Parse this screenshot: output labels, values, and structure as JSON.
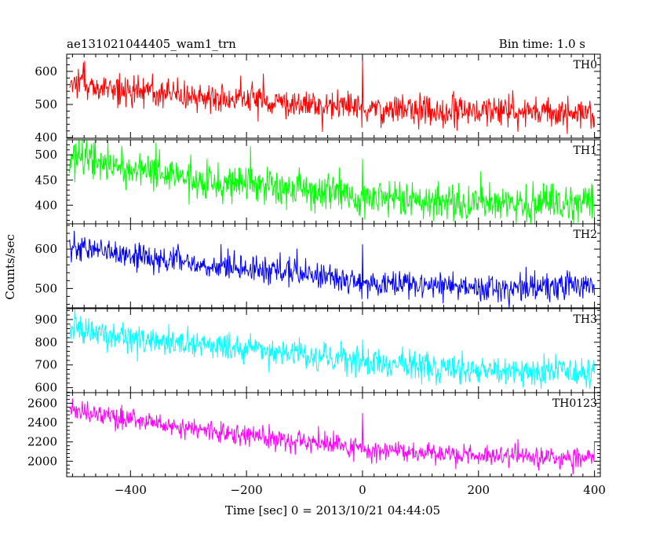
{
  "chart_data": {
    "type": "line",
    "title_left": "ae131021044405_wam1_trn",
    "title_right": "Bin time: 1.0 s",
    "xlabel": "Time [sec] 0 = 2013/10/21 04:44:05",
    "ylabel": "Counts/sec",
    "xlim": [
      -510,
      410
    ],
    "x_ticks": [
      -400,
      -200,
      0,
      200,
      400
    ],
    "x_start": -505,
    "x_end": 400,
    "bin_time": 1.0,
    "grid": false,
    "panels": [
      {
        "label": "TH0",
        "color": "#ff0000",
        "ylim": [
          398,
          652
        ],
        "y_ticks": [
          400,
          500,
          600
        ],
        "baseline": [
          [
            -505,
            565
          ],
          [
            -300,
            525
          ],
          [
            -100,
            505
          ],
          [
            0,
            488
          ],
          [
            200,
            478
          ],
          [
            400,
            472
          ]
        ],
        "noise_std": 24,
        "spike": {
          "x": 0,
          "value": 635
        }
      },
      {
        "label": "TH1",
        "color": "#00ff00",
        "ylim": [
          363,
          530
        ],
        "y_ticks": [
          400,
          450,
          500
        ],
        "baseline": [
          [
            -505,
            495
          ],
          [
            -300,
            455
          ],
          [
            -100,
            430
          ],
          [
            0,
            418
          ],
          [
            200,
            403
          ],
          [
            400,
            400
          ]
        ],
        "noise_std": 20,
        "spike": {
          "x": 0,
          "value": 492
        }
      },
      {
        "label": "TH2",
        "color": "#0000ff",
        "ylim": [
          451,
          664
        ],
        "y_ticks": [
          500,
          600
        ],
        "baseline": [
          [
            -505,
            605
          ],
          [
            -300,
            565
          ],
          [
            -100,
            535
          ],
          [
            0,
            515
          ],
          [
            200,
            505
          ],
          [
            400,
            500
          ]
        ],
        "noise_std": 17,
        "spike": {
          "x": 0,
          "value": 612
        }
      },
      {
        "label": "TH3",
        "color": "#00ffff",
        "ylim": [
          578,
          948
        ],
        "y_ticks": [
          600,
          700,
          800,
          900
        ],
        "baseline": [
          [
            -505,
            860
          ],
          [
            -300,
            795
          ],
          [
            -100,
            745
          ],
          [
            0,
            712
          ],
          [
            200,
            680
          ],
          [
            400,
            670
          ]
        ],
        "noise_std": 32,
        "spike": {
          "x": 0,
          "value": 812
        }
      },
      {
        "label": "TH0123",
        "color": "#ff00ff",
        "ylim": [
          1840,
          2710
        ],
        "y_ticks": [
          2000,
          2200,
          2400,
          2600
        ],
        "baseline": [
          [
            -505,
            2530
          ],
          [
            -300,
            2340
          ],
          [
            -100,
            2200
          ],
          [
            0,
            2120
          ],
          [
            200,
            2050
          ],
          [
            400,
            2040
          ]
        ],
        "noise_std": 55,
        "spike": {
          "x": 0,
          "value": 2500
        }
      }
    ]
  }
}
